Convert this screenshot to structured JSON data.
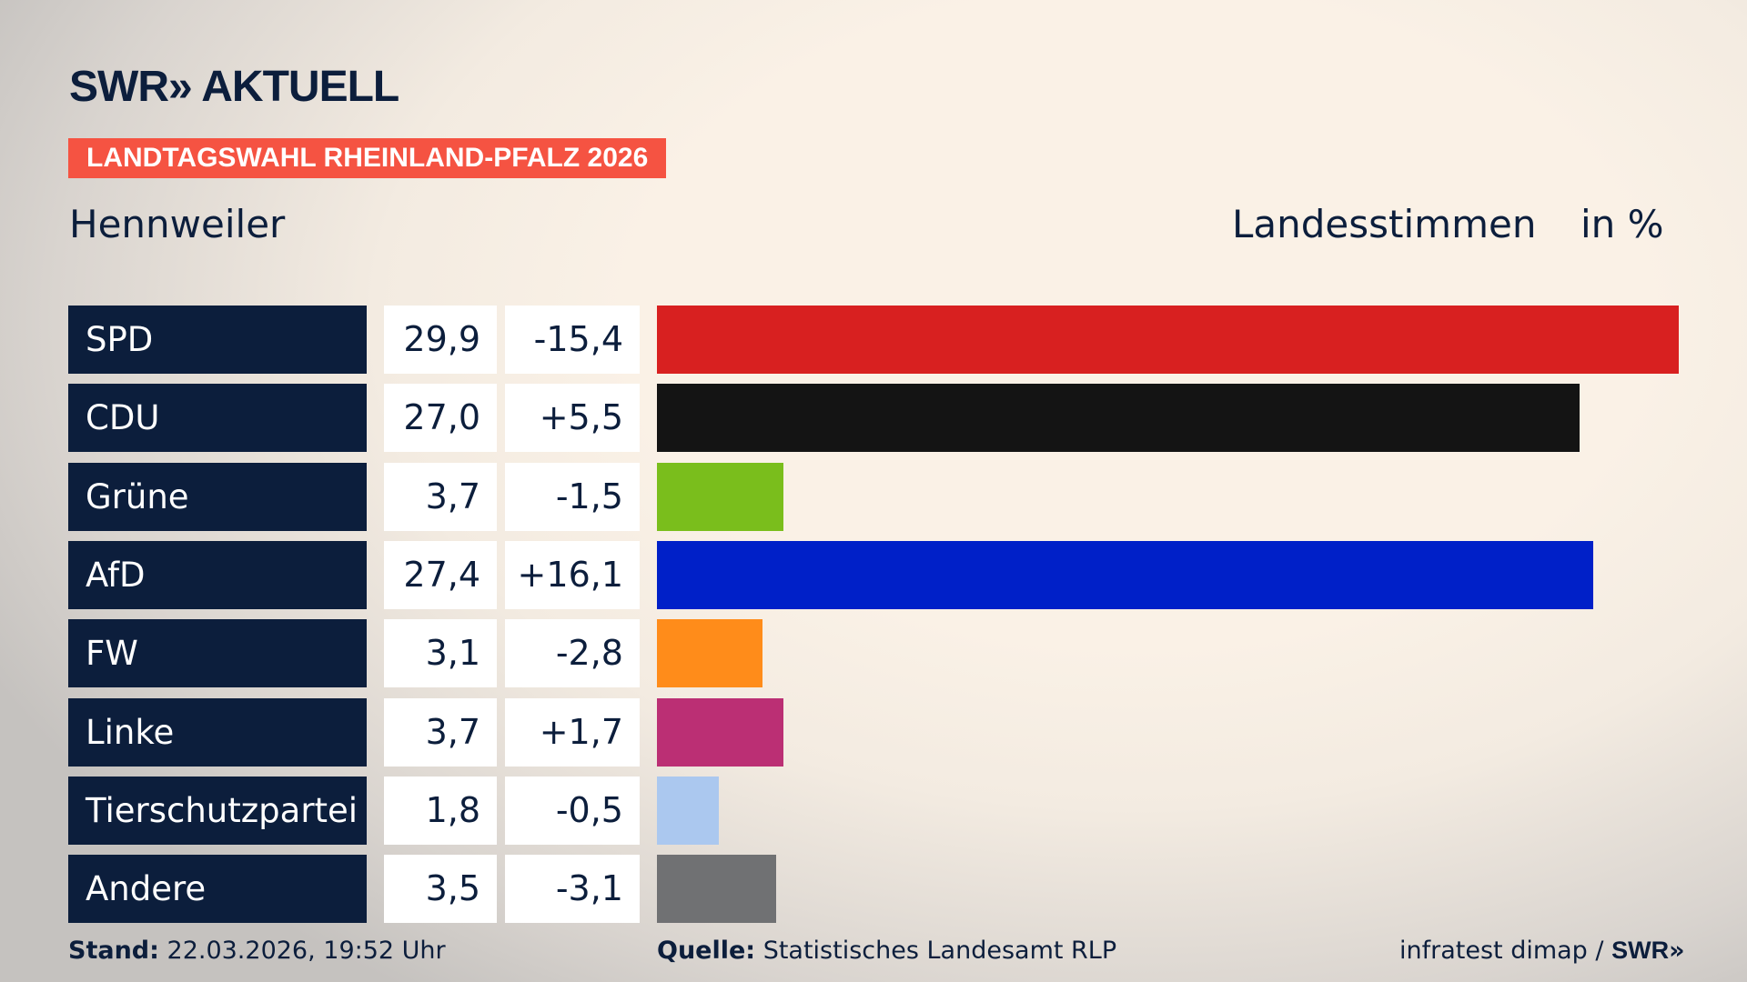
{
  "header": {
    "logo": "SWR AKTUELL",
    "banner": "LANDTAGSWAHL RHEINLAND-PFALZ 2026",
    "region": "Hennweiler",
    "measure": "Landesstimmen",
    "unit": "in %"
  },
  "chart_data": {
    "type": "bar",
    "orientation": "horizontal",
    "categories": [
      "SPD",
      "CDU",
      "Grüne",
      "AfD",
      "FW",
      "Linke",
      "Tierschutzpartei",
      "Andere"
    ],
    "values": [
      "29,9",
      "27,0",
      "3,7",
      "27,4",
      "3,1",
      "3,7",
      "1,8",
      "3,5"
    ],
    "numeric_values": [
      29.9,
      27.0,
      3.7,
      27.4,
      3.1,
      3.7,
      1.8,
      3.5
    ],
    "changes": [
      "-15,4",
      "+5,5",
      "-1,5",
      "+16,1",
      "-2,8",
      "+1,7",
      "-0,5",
      "-3,1"
    ],
    "colors": [
      "#d82020",
      "#141414",
      "#7abe1c",
      "#0020c8",
      "#ff8c1a",
      "#bb2f74",
      "#abc8ef",
      "#707173"
    ],
    "xlim": [
      0,
      29.9
    ]
  },
  "footer": {
    "stand_label": "Stand:",
    "stand": "22.03.2026, 19:52 Uhr",
    "source_label": "Quelle:",
    "source": "Statistisches Landesamt RLP",
    "credit": "infratest dimap /",
    "credit_logo": "SWR"
  }
}
